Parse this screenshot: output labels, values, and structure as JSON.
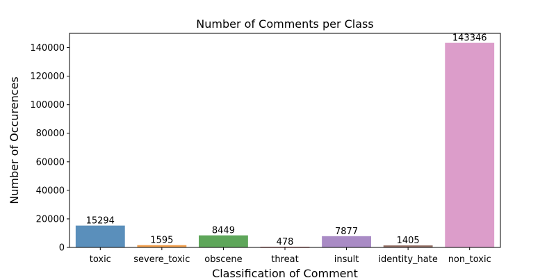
{
  "chart_data": {
    "type": "bar",
    "title": "Number of Comments per Class",
    "xlabel": "Classification of Comment",
    "ylabel": "Number of Occurences",
    "categories": [
      "toxic",
      "severe_toxic",
      "obscene",
      "threat",
      "insult",
      "identity_hate",
      "non_toxic"
    ],
    "values": [
      15294,
      1595,
      8449,
      478,
      7877,
      1405,
      143346
    ],
    "data_labels": [
      "15294",
      "1595",
      "8449",
      "478",
      "7877",
      "1405",
      "143346"
    ],
    "colors": [
      "#5a8fbb",
      "#f1a04f",
      "#5ea65a",
      "#c0504d",
      "#a98bc5",
      "#936f65",
      "#dc9dca"
    ],
    "ylim": [
      0,
      150000
    ],
    "yticks": [
      0,
      20000,
      40000,
      60000,
      80000,
      100000,
      120000,
      140000
    ],
    "ytick_labels": [
      "0",
      "20000",
      "40000",
      "60000",
      "80000",
      "100000",
      "120000",
      "140000"
    ],
    "grid": false,
    "legend": "none"
  }
}
